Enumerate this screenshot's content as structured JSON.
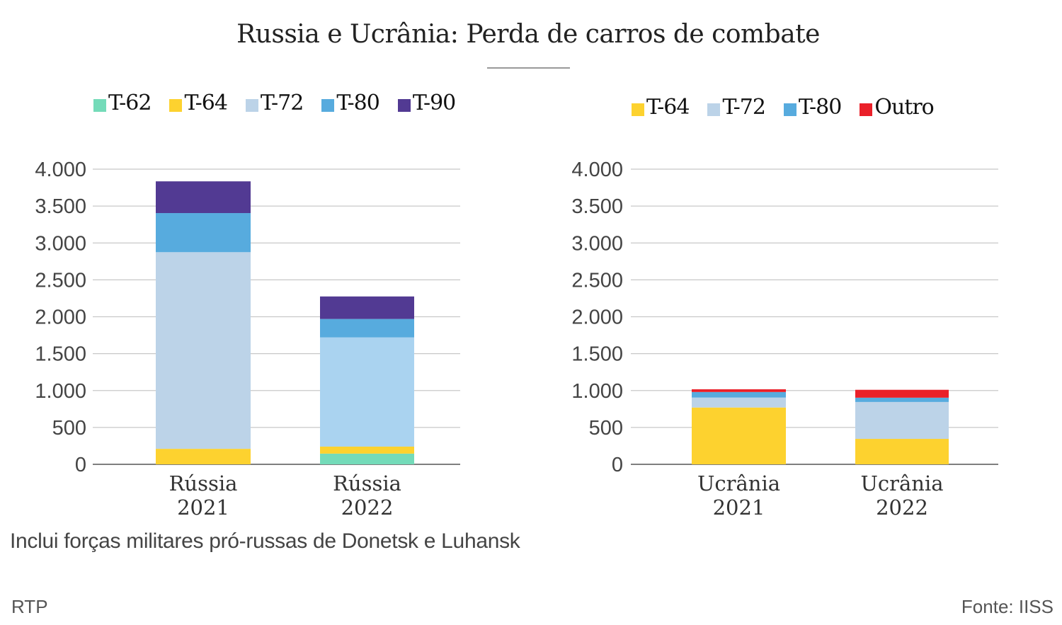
{
  "title": "Russia e Ucrânia: Perda de carros de combate",
  "note": "Inclui forças militares pró-russas de Donetsk e Luhansk",
  "credit": "RTP",
  "source": "Fonte: IISS",
  "chart_data": [
    {
      "type": "bar",
      "stacked": true,
      "title": "",
      "xlabel": "",
      "ylabel": "",
      "ylim": [
        0,
        4000
      ],
      "yticks": [
        0,
        500,
        1000,
        1500,
        2000,
        2500,
        3000,
        3500,
        4000
      ],
      "ytick_labels": [
        "0",
        "500",
        "1.000",
        "1.500",
        "2.000",
        "2.500",
        "3.000",
        "3.500",
        "4.000"
      ],
      "grid": true,
      "legend_position": "top",
      "categories": [
        [
          "Rússia",
          "2021"
        ],
        [
          "Rússia",
          "2022"
        ]
      ],
      "series": [
        {
          "name": "T-62",
          "color": "#74dbb9",
          "values": [
            0,
            145
          ]
        },
        {
          "name": "T-64",
          "color": "#fdd22f",
          "values": [
            210,
            95
          ]
        },
        {
          "name": "T-72",
          "color": "#bcd3e8",
          "values": [
            2665,
            1480
          ],
          "bar_colors": [
            "#bcd3e8",
            "#aad3f0"
          ]
        },
        {
          "name": "T-80",
          "color": "#57abde",
          "values": [
            530,
            250
          ]
        },
        {
          "name": "T-90",
          "color": "#523a93",
          "values": [
            430,
            305
          ]
        }
      ]
    },
    {
      "type": "bar",
      "stacked": true,
      "title": "",
      "xlabel": "",
      "ylabel": "",
      "ylim": [
        0,
        4000
      ],
      "yticks": [
        0,
        500,
        1000,
        1500,
        2000,
        2500,
        3000,
        3500,
        4000
      ],
      "ytick_labels": [
        "0",
        "500",
        "1.000",
        "1.500",
        "2.000",
        "2.500",
        "3.000",
        "3.500",
        "4.000"
      ],
      "grid": true,
      "legend_position": "top",
      "categories": [
        [
          "Ucrânia",
          "2021"
        ],
        [
          "Ucrânia",
          "2022"
        ]
      ],
      "series": [
        {
          "name": "T-64",
          "color": "#fdd22f",
          "values": [
            770,
            345
          ]
        },
        {
          "name": "T-72",
          "color": "#bcd3e8",
          "values": [
            135,
            500
          ]
        },
        {
          "name": "T-80",
          "color": "#57abde",
          "values": [
            75,
            58
          ]
        },
        {
          "name": "Outro",
          "color": "#ea2029",
          "values": [
            37,
            107
          ]
        }
      ]
    }
  ]
}
